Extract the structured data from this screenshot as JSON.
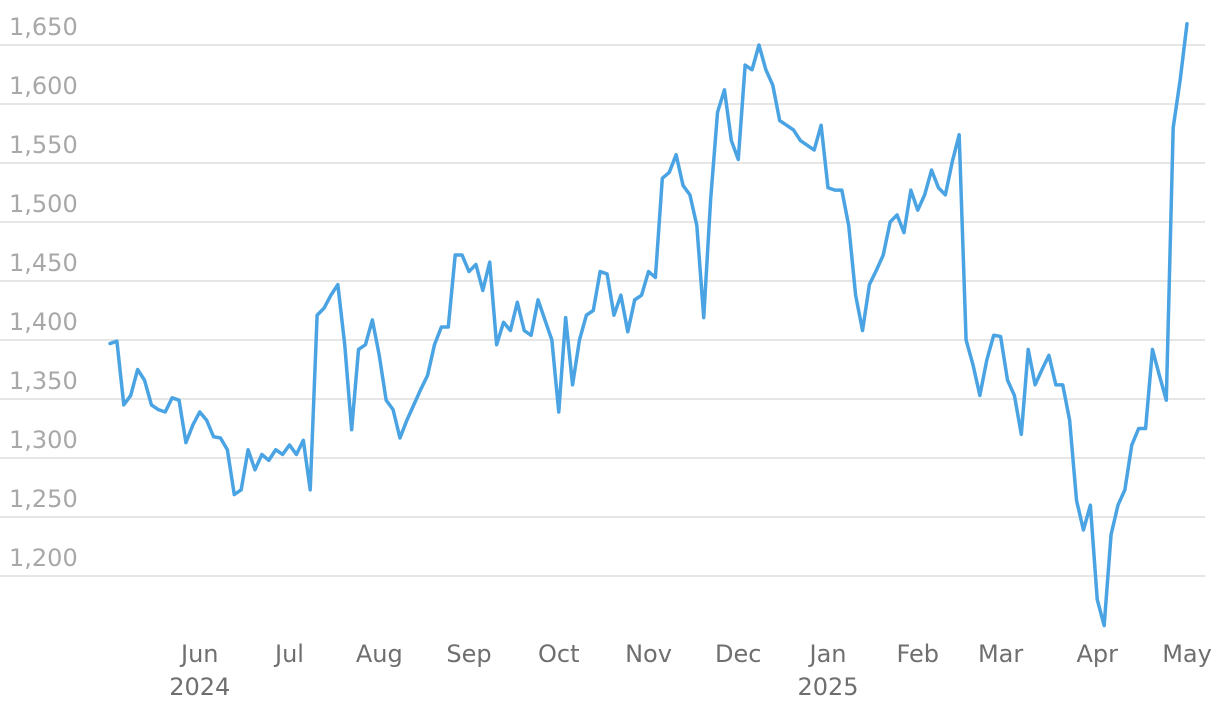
{
  "chart_data": {
    "type": "line",
    "categories": [
      null,
      null,
      null,
      null,
      null,
      null,
      null,
      null,
      null,
      null,
      null,
      null,
      null,
      "Jun\n2024",
      null,
      null,
      null,
      null,
      null,
      null,
      null,
      null,
      null,
      null,
      null,
      null,
      "Jul",
      null,
      null,
      null,
      null,
      null,
      null,
      null,
      null,
      null,
      null,
      null,
      null,
      "Aug",
      null,
      null,
      null,
      null,
      null,
      null,
      null,
      null,
      null,
      null,
      null,
      null,
      "Sep",
      null,
      null,
      null,
      null,
      null,
      null,
      null,
      null,
      null,
      null,
      null,
      null,
      "Oct",
      null,
      null,
      null,
      null,
      null,
      null,
      null,
      null,
      null,
      null,
      null,
      null,
      "Nov",
      null,
      null,
      null,
      null,
      null,
      null,
      null,
      null,
      null,
      null,
      null,
      null,
      "Dec",
      null,
      null,
      null,
      null,
      null,
      null,
      null,
      null,
      null,
      null,
      null,
      null,
      "Jan\n2025",
      null,
      null,
      null,
      null,
      null,
      null,
      null,
      null,
      null,
      null,
      null,
      null,
      "Feb",
      null,
      null,
      null,
      null,
      null,
      null,
      null,
      null,
      null,
      null,
      null,
      "Mar",
      null,
      null,
      null,
      null,
      null,
      null,
      null,
      null,
      null,
      null,
      null,
      null,
      null,
      "Apr",
      null,
      null,
      null,
      null,
      null,
      null,
      null,
      null,
      null,
      null,
      null,
      null,
      "May"
    ],
    "values": [
      1397,
      1399,
      1345,
      1353,
      1375,
      1366,
      1345,
      1341,
      1339,
      1351,
      1349,
      1313,
      1328,
      1339,
      1332,
      1318,
      1317,
      1307,
      1269,
      1273,
      1307,
      1290,
      1303,
      1298,
      1307,
      1303,
      1311,
      1303,
      1315,
      1273,
      1421,
      1427,
      1438,
      1447,
      1396,
      1324,
      1392,
      1396,
      1417,
      1387,
      1349,
      1341,
      1317,
      1332,
      1345,
      1358,
      1370,
      1396,
      1411,
      1411,
      1472,
      1472,
      1458,
      1464,
      1442,
      1466,
      1396,
      1415,
      1408,
      1432,
      1408,
      1404,
      1434,
      1417,
      1400,
      1339,
      1419,
      1362,
      1400,
      1421,
      1425,
      1458,
      1456,
      1421,
      1438,
      1407,
      1434,
      1438,
      1458,
      1453,
      1537,
      1542,
      1557,
      1531,
      1523,
      1497,
      1419,
      1519,
      1593,
      1612,
      1569,
      1553,
      1633,
      1629,
      1650,
      1629,
      1616,
      1586,
      1582,
      1578,
      1569,
      1565,
      1561,
      1582,
      1529,
      1527,
      1527,
      1497,
      1438,
      1408,
      1447,
      1459,
      1472,
      1500,
      1506,
      1491,
      1527,
      1510,
      1523,
      1544,
      1529,
      1523,
      1551,
      1574,
      1400,
      1379,
      1353,
      1383,
      1404,
      1403,
      1366,
      1353,
      1320,
      1392,
      1362,
      1375,
      1387,
      1362,
      1362,
      1332,
      1264,
      1239,
      1260,
      1180,
      1158,
      1235,
      1260,
      1273,
      1311,
      1325,
      1325,
      1392,
      1370,
      1349,
      1580,
      1620,
      1668
    ],
    "color": "#4aa3e2",
    "ylim": [
      1150,
      1685
    ],
    "yticks": [
      {
        "value": 1200,
        "label": "1,200"
      },
      {
        "value": 1250,
        "label": "1,250"
      },
      {
        "value": 1300,
        "label": "1,300"
      },
      {
        "value": 1350,
        "label": "1,350"
      },
      {
        "value": 1400,
        "label": "1,400"
      },
      {
        "value": 1450,
        "label": "1,450"
      },
      {
        "value": 1500,
        "label": "1,500"
      },
      {
        "value": 1550,
        "label": "1,550"
      },
      {
        "value": 1600,
        "label": "1,600"
      },
      {
        "value": 1650,
        "label": "1,650"
      }
    ],
    "grid": true
  }
}
